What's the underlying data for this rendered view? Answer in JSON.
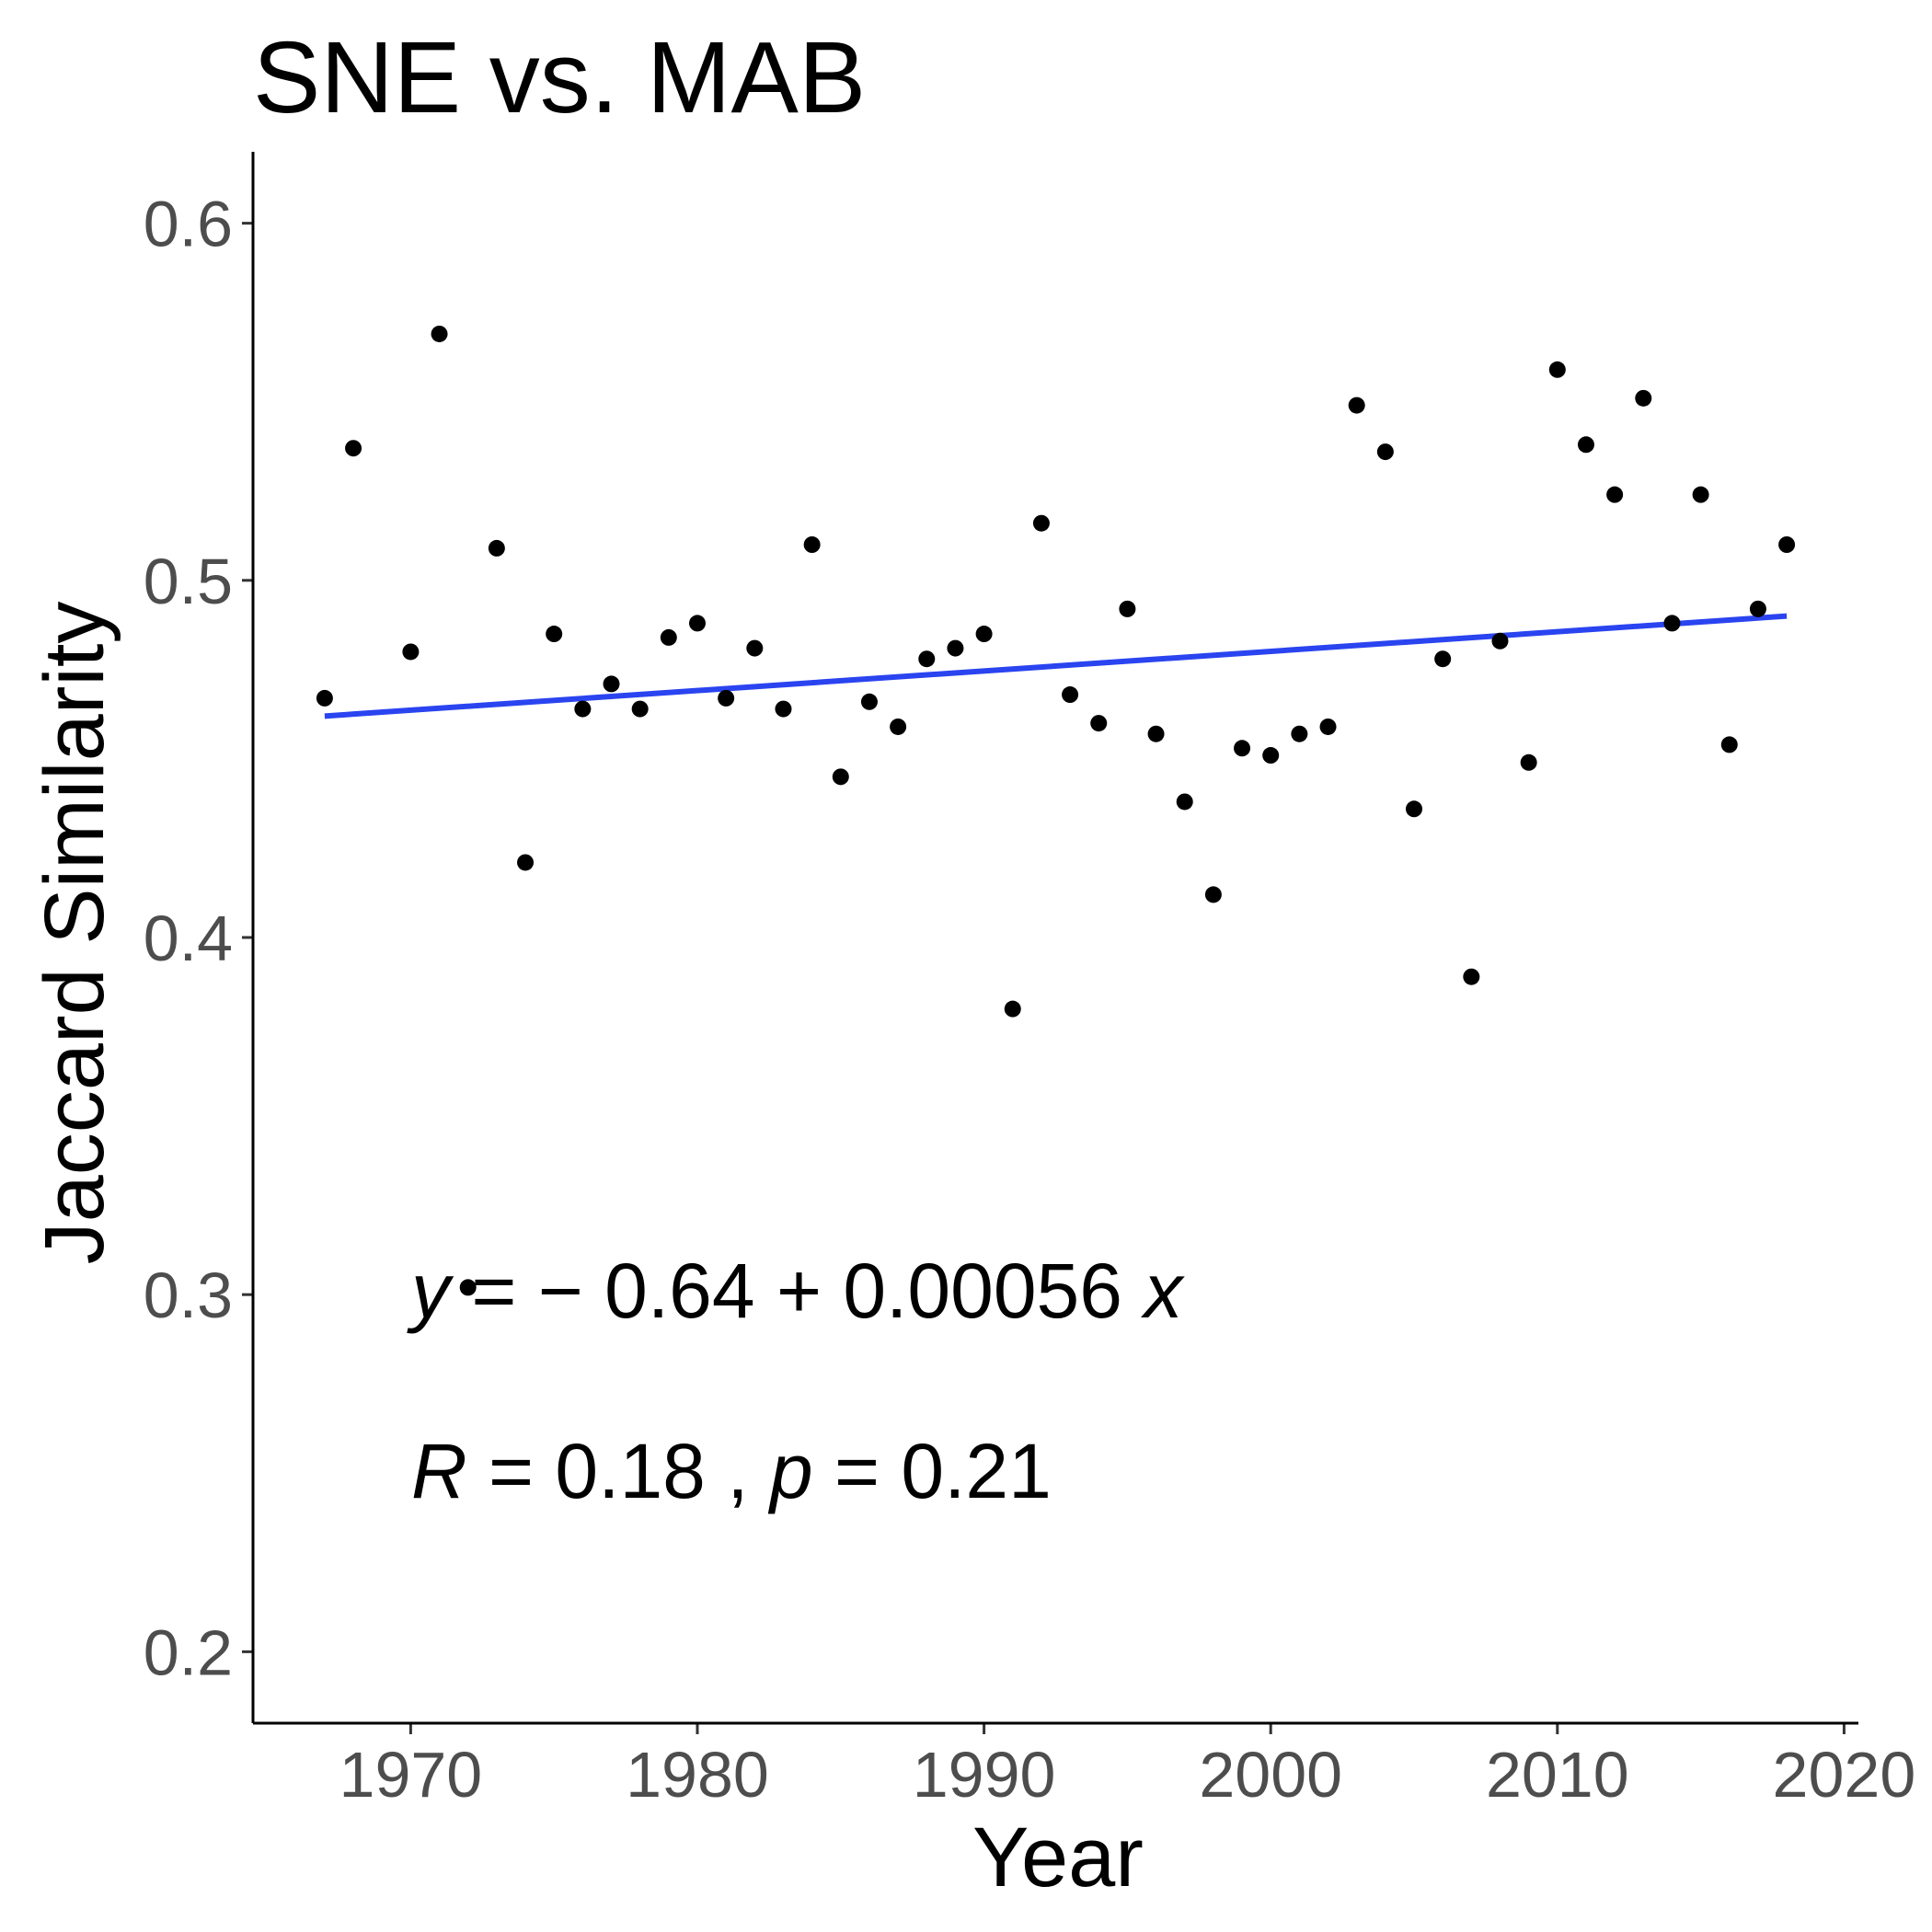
{
  "chart_data": {
    "type": "scatter",
    "title": "SNE vs. MAB",
    "xlabel": "Year",
    "ylabel": "Jaccard Similarity",
    "xlim": [
      1964.5,
      2020.5
    ],
    "ylim": [
      0.18,
      0.62
    ],
    "x_ticks": [
      1970,
      1980,
      1990,
      2000,
      2010,
      2020
    ],
    "x_tick_labels": [
      "1970",
      "1980",
      "1990",
      "2000",
      "2010",
      "2020"
    ],
    "y_ticks": [
      0.2,
      0.3,
      0.4,
      0.5,
      0.6
    ],
    "y_tick_labels": [
      "0.2",
      "0.3",
      "0.4",
      "0.5",
      "0.6"
    ],
    "grid": false,
    "point_color": "#000000",
    "line_color": "#2a44f0",
    "points": [
      {
        "x": 1967,
        "y": 0.467
      },
      {
        "x": 1968,
        "y": 0.537
      },
      {
        "x": 1970,
        "y": 0.48
      },
      {
        "x": 1971,
        "y": 0.569
      },
      {
        "x": 1972,
        "y": 0.302
      },
      {
        "x": 1973,
        "y": 0.509
      },
      {
        "x": 1974,
        "y": 0.421
      },
      {
        "x": 1975,
        "y": 0.485
      },
      {
        "x": 1976,
        "y": 0.464
      },
      {
        "x": 1977,
        "y": 0.471
      },
      {
        "x": 1978,
        "y": 0.464
      },
      {
        "x": 1979,
        "y": 0.484
      },
      {
        "x": 1980,
        "y": 0.488
      },
      {
        "x": 1981,
        "y": 0.467
      },
      {
        "x": 1982,
        "y": 0.481
      },
      {
        "x": 1983,
        "y": 0.464
      },
      {
        "x": 1984,
        "y": 0.51
      },
      {
        "x": 1985,
        "y": 0.445
      },
      {
        "x": 1986,
        "y": 0.466
      },
      {
        "x": 1987,
        "y": 0.459
      },
      {
        "x": 1988,
        "y": 0.478
      },
      {
        "x": 1989,
        "y": 0.481
      },
      {
        "x": 1990,
        "y": 0.485
      },
      {
        "x": 1991,
        "y": 0.38
      },
      {
        "x": 1992,
        "y": 0.516
      },
      {
        "x": 1993,
        "y": 0.468
      },
      {
        "x": 1994,
        "y": 0.46
      },
      {
        "x": 1995,
        "y": 0.492
      },
      {
        "x": 1996,
        "y": 0.457
      },
      {
        "x": 1997,
        "y": 0.438
      },
      {
        "x": 1998,
        "y": 0.412
      },
      {
        "x": 1999,
        "y": 0.453
      },
      {
        "x": 2000,
        "y": 0.451
      },
      {
        "x": 2001,
        "y": 0.457
      },
      {
        "x": 2002,
        "y": 0.459
      },
      {
        "x": 2003,
        "y": 0.549
      },
      {
        "x": 2004,
        "y": 0.536
      },
      {
        "x": 2005,
        "y": 0.436
      },
      {
        "x": 2006,
        "y": 0.478
      },
      {
        "x": 2007,
        "y": 0.389
      },
      {
        "x": 2008,
        "y": 0.483
      },
      {
        "x": 2009,
        "y": 0.449
      },
      {
        "x": 2010,
        "y": 0.559
      },
      {
        "x": 2011,
        "y": 0.538
      },
      {
        "x": 2012,
        "y": 0.524
      },
      {
        "x": 2013,
        "y": 0.551
      },
      {
        "x": 2014,
        "y": 0.488
      },
      {
        "x": 2015,
        "y": 0.524
      },
      {
        "x": 2016,
        "y": 0.454
      },
      {
        "x": 2017,
        "y": 0.492
      },
      {
        "x": 2018,
        "y": 0.51
      }
    ],
    "regression_line": {
      "x": [
        1967,
        2018
      ],
      "y": [
        0.462,
        0.49
      ]
    },
    "annotations": {
      "equation": {
        "y": "y",
        "equals_text": " = − 0.64 + 0.00056 ",
        "x": "x"
      },
      "stats": {
        "r": "R",
        "r_text": " = 0.18 , ",
        "p": "p",
        "p_text": " = 0.21"
      }
    }
  }
}
